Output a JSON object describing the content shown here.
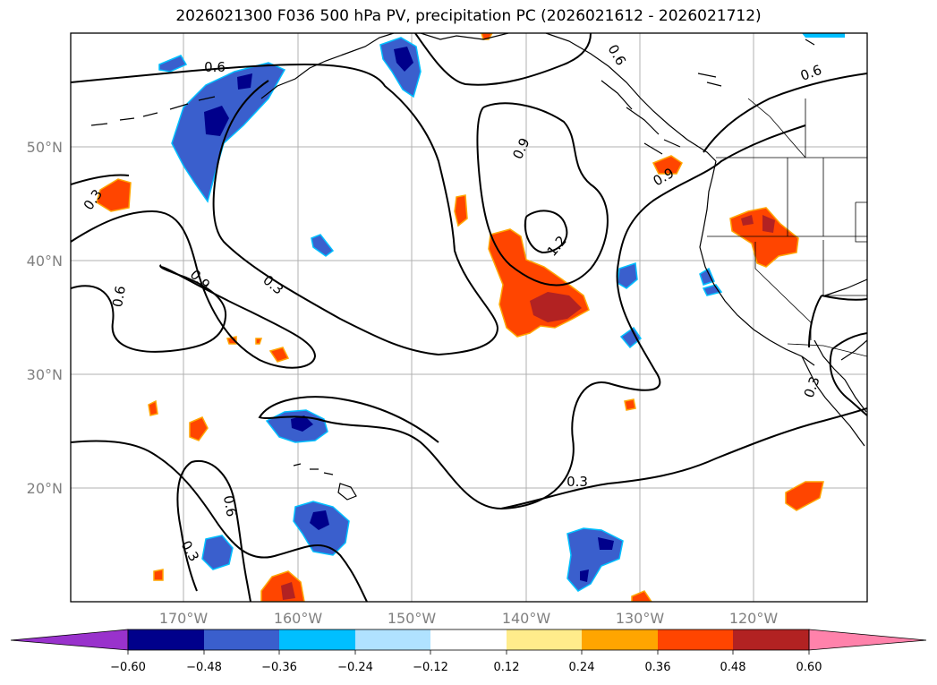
{
  "title": "2026021300 F036 500 hPa PV, precipitation PC (2026021612 - 2026021712)",
  "axes": {
    "lat_labels": [
      "50°N",
      "40°N",
      "30°N",
      "20°N"
    ],
    "lon_labels": [
      "170°W",
      "160°W",
      "150°W",
      "140°W",
      "130°W",
      "120°W"
    ]
  },
  "contour_labels": [
    "0.6",
    "0.3",
    "0.6",
    "0.9",
    "0.3",
    "0.9",
    "1.2",
    "0.9",
    "0.6",
    "0.6",
    "0.3",
    "0.3",
    "0.6",
    "0.3"
  ],
  "colorbar": {
    "ticks": [
      "−0.60",
      "−0.48",
      "−0.36",
      "−0.24",
      "−0.12",
      "0.12",
      "0.24",
      "0.36",
      "0.48",
      "0.60"
    ],
    "colors": [
      "#9932cc",
      "#00008b",
      "#3a5fcd",
      "#00bfff",
      "#b0e2ff",
      "#ffffff",
      "#ffec8b",
      "#ffa500",
      "#ff4500",
      "#b22222",
      "#ff82ab"
    ]
  },
  "chart_data": {
    "type": "map",
    "title": "2026021300 F036 500 hPa PV, precipitation PC (2026021612 - 2026021712)",
    "domain": {
      "lon_range": [
        -180,
        -110
      ],
      "lat_range": [
        10,
        60
      ]
    },
    "variables": [
      "500 hPa PV (contours)",
      "precipitation PC (shaded)"
    ],
    "contour_levels": [
      0.3,
      0.6,
      0.9,
      1.2
    ],
    "colorbar_levels": [
      -0.6,
      -0.48,
      -0.36,
      -0.24,
      -0.12,
      0.12,
      0.24,
      0.36,
      0.48,
      0.6
    ]
  }
}
